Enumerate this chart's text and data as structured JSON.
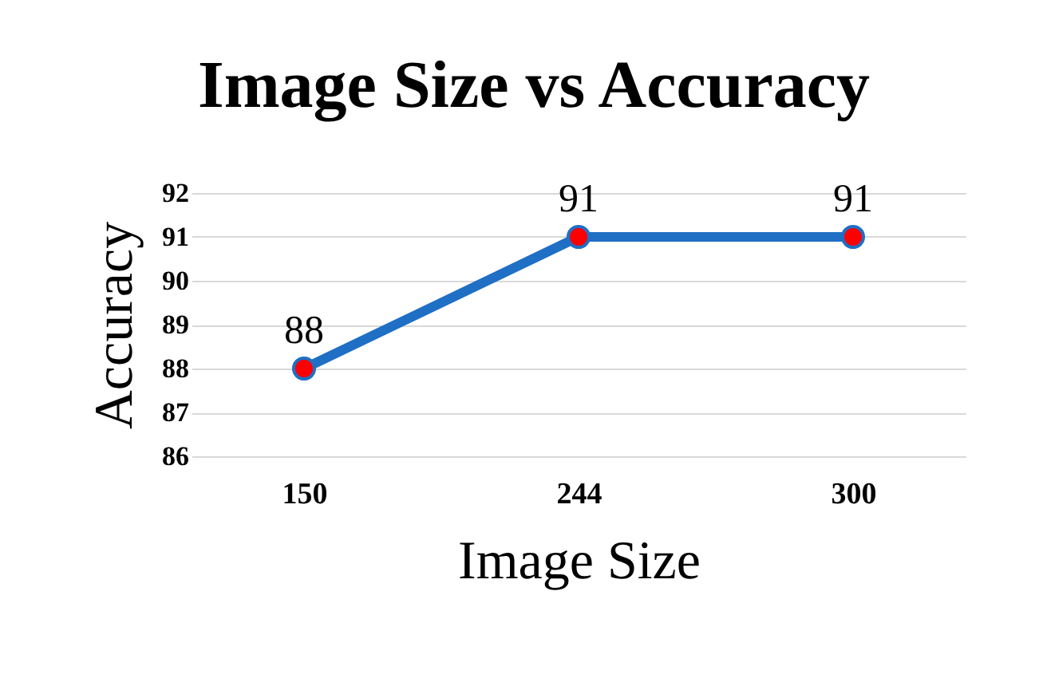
{
  "chart_data": {
    "type": "line",
    "title": "Image Size vs Accuracy",
    "xlabel": "Image Size",
    "ylabel": "Accuracy",
    "categories": [
      "150",
      "244",
      "300"
    ],
    "series": [
      {
        "color": "#1f6fc5",
        "colors": [
          "#ff0000",
          "#ff0000",
          "#ff0000"
        ],
        "values": [
          88,
          91,
          91
        ]
      }
    ],
    "ylim": [
      86,
      92
    ],
    "yticks": [
      86,
      87,
      88,
      89,
      90,
      91,
      92
    ],
    "grid": "y",
    "marker": "circle",
    "data_labels": true
  }
}
